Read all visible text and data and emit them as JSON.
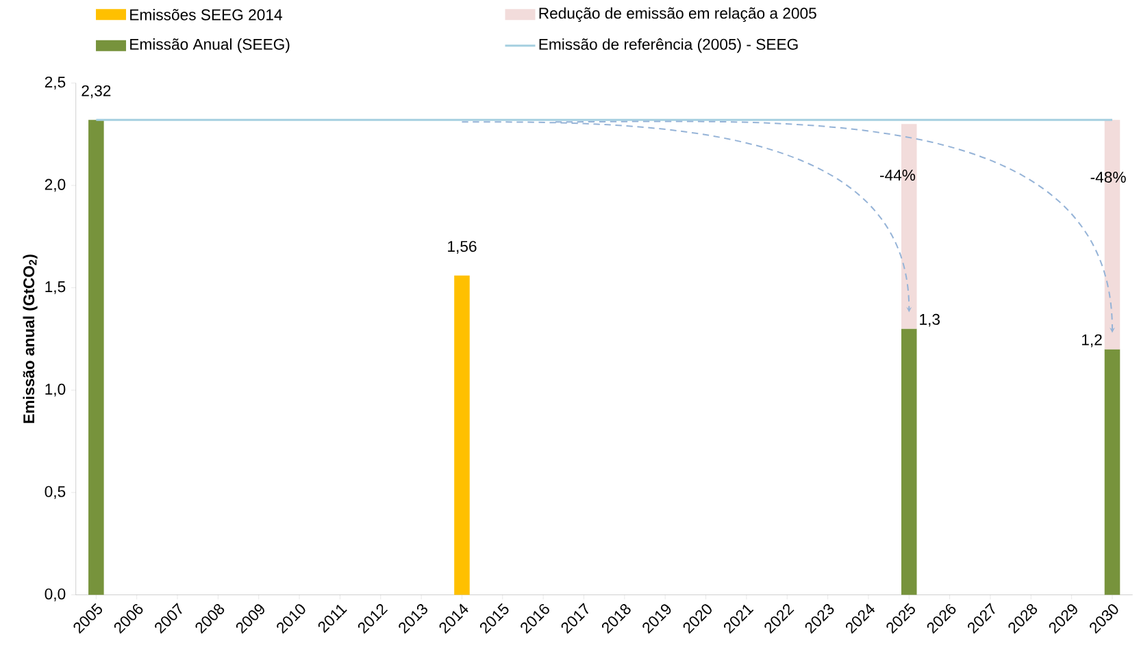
{
  "chart_data": {
    "type": "bar",
    "stacked": true,
    "legend": "top",
    "ylabel": "**Emissão anual (GtCO$_{2}$)**",
    "categories": [
      "2005",
      "2006",
      "2007",
      "2008",
      "2009",
      "2010",
      "2011",
      "2012",
      "2013",
      "2014",
      "2015",
      "2016",
      "2017",
      "2018",
      "2019",
      "2020",
      "2021",
      "2022",
      "2023",
      "2024",
      "2025",
      "2026",
      "2027",
      "2028",
      "2029",
      "2030"
    ],
    "ylim": [
      0,
      2.5
    ],
    "annotations": [
      "-44%",
      "-48%"
    ],
    "yticks": [
      {
        "value": 0,
        "label": "0,0"
      },
      {
        "value": 0.5,
        "label": "0,5"
      },
      {
        "value": 1,
        "label": "1,0"
      },
      {
        "value": 1.5,
        "label": "1,5"
      },
      {
        "value": 2,
        "label": "2,0"
      },
      {
        "value": 2.5,
        "label": "2,5"
      }
    ],
    "series": [
      {
        "name": "Emissões SEEG 2014",
        "color": "#ffc000",
        "values": [
          null,
          null,
          null,
          null,
          null,
          null,
          null,
          null,
          null,
          1.56,
          null,
          null,
          null,
          null,
          null,
          null,
          null,
          null,
          null,
          null,
          null,
          null,
          null,
          null,
          null,
          null
        ],
        "value_labels": [
          null,
          null,
          null,
          null,
          null,
          null,
          null,
          null,
          null,
          "1,56",
          null,
          null,
          null,
          null,
          null,
          null,
          null,
          null,
          null,
          null,
          null,
          null,
          null,
          null,
          null,
          null
        ]
      },
      {
        "name": "Emissão Anual (SEEG)",
        "color": "#77933c",
        "values": [
          2.32,
          null,
          null,
          null,
          null,
          null,
          null,
          null,
          null,
          null,
          null,
          null,
          null,
          null,
          null,
          null,
          null,
          null,
          null,
          null,
          1.3,
          null,
          null,
          null,
          null,
          1.2
        ],
        "value_labels": [
          "2,32",
          null,
          null,
          null,
          null,
          null,
          null,
          null,
          null,
          null,
          null,
          null,
          null,
          null,
          null,
          null,
          null,
          null,
          null,
          null,
          "1,3",
          null,
          null,
          null,
          null,
          "1,2"
        ]
      },
      {
        "name": "Redução de emissão em relação a 2005",
        "color": "#f2dcdb",
        "values": [
          null,
          null,
          null,
          null,
          null,
          null,
          null,
          null,
          null,
          null,
          null,
          null,
          null,
          null,
          null,
          null,
          null,
          null,
          null,
          null,
          1.0,
          null,
          null,
          null,
          null,
          1.12
        ]
      },
      {
        "name": "Emissão de referência (2005) - SEEG",
        "type": "line",
        "color": "#a5cfe0",
        "values": [
          2.32,
          2.32,
          2.32,
          2.32,
          2.32,
          2.32,
          2.32,
          2.32,
          2.32,
          2.32,
          2.32,
          2.32,
          2.32,
          2.32,
          2.32,
          2.32,
          2.32,
          2.32,
          2.32,
          2.32,
          2.32,
          2.32,
          2.32,
          2.32,
          2.32,
          2.32
        ]
      }
    ]
  }
}
